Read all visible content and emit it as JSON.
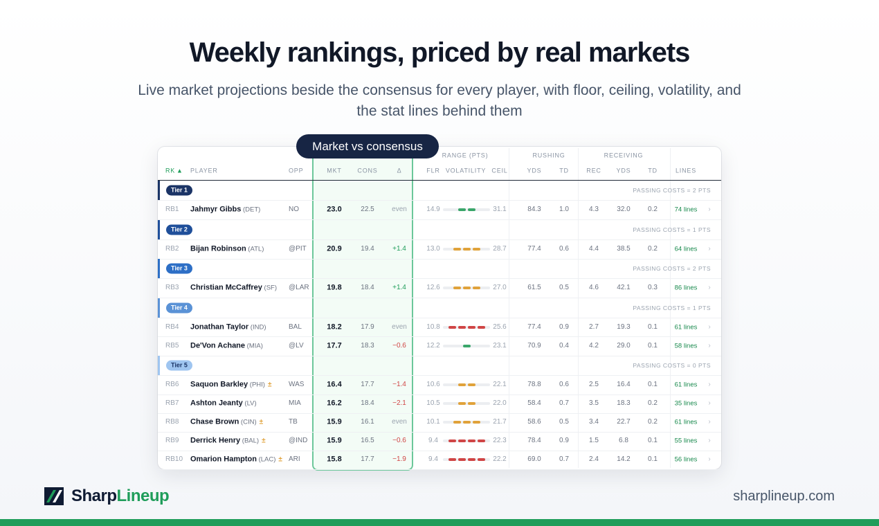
{
  "header": {
    "title": "Weekly rankings, priced by real markets",
    "subtitle": "Live market projections beside the consensus for every player, with floor, ceiling, volatility, and the stat lines behind them"
  },
  "table": {
    "callout": "Market vs consensus",
    "groups": [
      "RANGE (PTS)",
      "RUSHING",
      "RECEIVING"
    ],
    "sort_arrow": "▲",
    "columns": [
      "RK",
      "PLAYER",
      "OPP",
      "MKT",
      "CONS",
      "Δ",
      "FLR",
      "VOLATILITY",
      "CEIL",
      "YDS",
      "TD",
      "REC",
      "YDS",
      "TD",
      "LINES"
    ],
    "tiers": [
      {
        "label": "Tier 1",
        "color": "#1b3466",
        "note": "PASSING COSTS = 2 PTS",
        "rows": [
          {
            "rank": "RB1",
            "name": "Jahmyr Gibbs",
            "team": "(DET)",
            "opp": "NO",
            "mkt": "23.0",
            "cons": "22.5",
            "delta": "even",
            "flr": "14.9",
            "volatility": {
              "level": 2,
              "color": "#3aa66a"
            },
            "ceil": "31.1",
            "rush_yds": "84.3",
            "rush_td": "1.0",
            "rec": "4.3",
            "rec_yds": "32.0",
            "rec_td": "0.2",
            "lines": "74 lines"
          }
        ]
      },
      {
        "label": "Tier 2",
        "color": "#1f4f9a",
        "note": "PASSING COSTS = 1 PTS",
        "rows": [
          {
            "rank": "RB2",
            "name": "Bijan Robinson",
            "team": "(ATL)",
            "opp": "@PIT",
            "mkt": "20.9",
            "cons": "19.4",
            "delta": "+1.4",
            "flr": "13.0",
            "volatility": {
              "level": 3,
              "color": "#e0a23a"
            },
            "ceil": "28.7",
            "rush_yds": "77.4",
            "rush_td": "0.6",
            "rec": "4.4",
            "rec_yds": "38.5",
            "rec_td": "0.2",
            "lines": "64 lines"
          }
        ]
      },
      {
        "label": "Tier 3",
        "color": "#2d6fc6",
        "note": "PASSING COSTS = 2 PTS",
        "rows": [
          {
            "rank": "RB3",
            "name": "Christian McCaffrey",
            "team": "(SF)",
            "opp": "@LAR",
            "mkt": "19.8",
            "cons": "18.4",
            "delta": "+1.4",
            "flr": "12.6",
            "volatility": {
              "level": 3,
              "color": "#e0a23a"
            },
            "ceil": "27.0",
            "rush_yds": "61.5",
            "rush_td": "0.5",
            "rec": "4.6",
            "rec_yds": "42.1",
            "rec_td": "0.3",
            "lines": "86 lines"
          }
        ]
      },
      {
        "label": "Tier 4",
        "color": "#5a92d6",
        "note": "PASSING COSTS = 1 PTS",
        "rows": [
          {
            "rank": "RB4",
            "name": "Jonathan Taylor",
            "team": "(IND)",
            "opp": "BAL",
            "mkt": "18.2",
            "cons": "17.9",
            "delta": "even",
            "flr": "10.8",
            "volatility": {
              "level": 4,
              "color": "#d04545"
            },
            "ceil": "25.6",
            "rush_yds": "77.4",
            "rush_td": "0.9",
            "rec": "2.7",
            "rec_yds": "19.3",
            "rec_td": "0.1",
            "lines": "61 lines"
          },
          {
            "rank": "RB5",
            "name": "De'Von Achane",
            "team": "(MIA)",
            "opp": "@LV",
            "mkt": "17.7",
            "cons": "18.3",
            "delta": "−0.6",
            "flr": "12.2",
            "volatility": {
              "level": 1,
              "color": "#3aa66a"
            },
            "ceil": "23.1",
            "rush_yds": "70.9",
            "rush_td": "0.4",
            "rec": "4.2",
            "rec_yds": "29.0",
            "rec_td": "0.1",
            "lines": "58 lines"
          }
        ]
      },
      {
        "label": "Tier 5",
        "color": "#9fc5f0",
        "note": "PASSING COSTS = 0 PTS",
        "rows": [
          {
            "rank": "RB6",
            "name": "Saquon Barkley",
            "team": "(PHI)",
            "flag": "±",
            "opp": "WAS",
            "mkt": "16.4",
            "cons": "17.7",
            "delta": "−1.4",
            "flr": "10.6",
            "volatility": {
              "level": 2,
              "color": "#e0a23a"
            },
            "ceil": "22.1",
            "rush_yds": "78.8",
            "rush_td": "0.6",
            "rec": "2.5",
            "rec_yds": "16.4",
            "rec_td": "0.1",
            "lines": "61 lines"
          },
          {
            "rank": "RB7",
            "name": "Ashton Jeanty",
            "team": "(LV)",
            "opp": "MIA",
            "mkt": "16.2",
            "cons": "18.4",
            "delta": "−2.1",
            "flr": "10.5",
            "volatility": {
              "level": 2,
              "color": "#e0a23a"
            },
            "ceil": "22.0",
            "rush_yds": "58.4",
            "rush_td": "0.7",
            "rec": "3.5",
            "rec_yds": "18.3",
            "rec_td": "0.2",
            "lines": "35 lines"
          },
          {
            "rank": "RB8",
            "name": "Chase Brown",
            "team": "(CIN)",
            "flag": "±",
            "opp": "TB",
            "mkt": "15.9",
            "cons": "16.1",
            "delta": "even",
            "flr": "10.1",
            "volatility": {
              "level": 3,
              "color": "#e0a23a"
            },
            "ceil": "21.7",
            "rush_yds": "58.6",
            "rush_td": "0.5",
            "rec": "3.4",
            "rec_yds": "22.7",
            "rec_td": "0.2",
            "lines": "61 lines"
          },
          {
            "rank": "RB9",
            "name": "Derrick Henry",
            "team": "(BAL)",
            "flag": "±",
            "opp": "@IND",
            "mkt": "15.9",
            "cons": "16.5",
            "delta": "−0.6",
            "flr": "9.4",
            "volatility": {
              "level": 4,
              "color": "#d04545"
            },
            "ceil": "22.3",
            "rush_yds": "78.4",
            "rush_td": "0.9",
            "rec": "1.5",
            "rec_yds": "6.8",
            "rec_td": "0.1",
            "lines": "55 lines"
          },
          {
            "rank": "RB10",
            "name": "Omarion Hampton",
            "team": "(LAC)",
            "flag": "±",
            "opp": "ARI",
            "mkt": "15.8",
            "cons": "17.7",
            "delta": "−1.9",
            "flr": "9.4",
            "volatility": {
              "level": 4,
              "color": "#d04545"
            },
            "ceil": "22.2",
            "rush_yds": "69.0",
            "rush_td": "0.7",
            "rec": "2.4",
            "rec_yds": "14.2",
            "rec_td": "0.1",
            "lines": "56 lines"
          }
        ]
      }
    ]
  },
  "footer": {
    "brand_a": "Sharp",
    "brand_b": "Lineup",
    "url": "sharplineup.com"
  }
}
